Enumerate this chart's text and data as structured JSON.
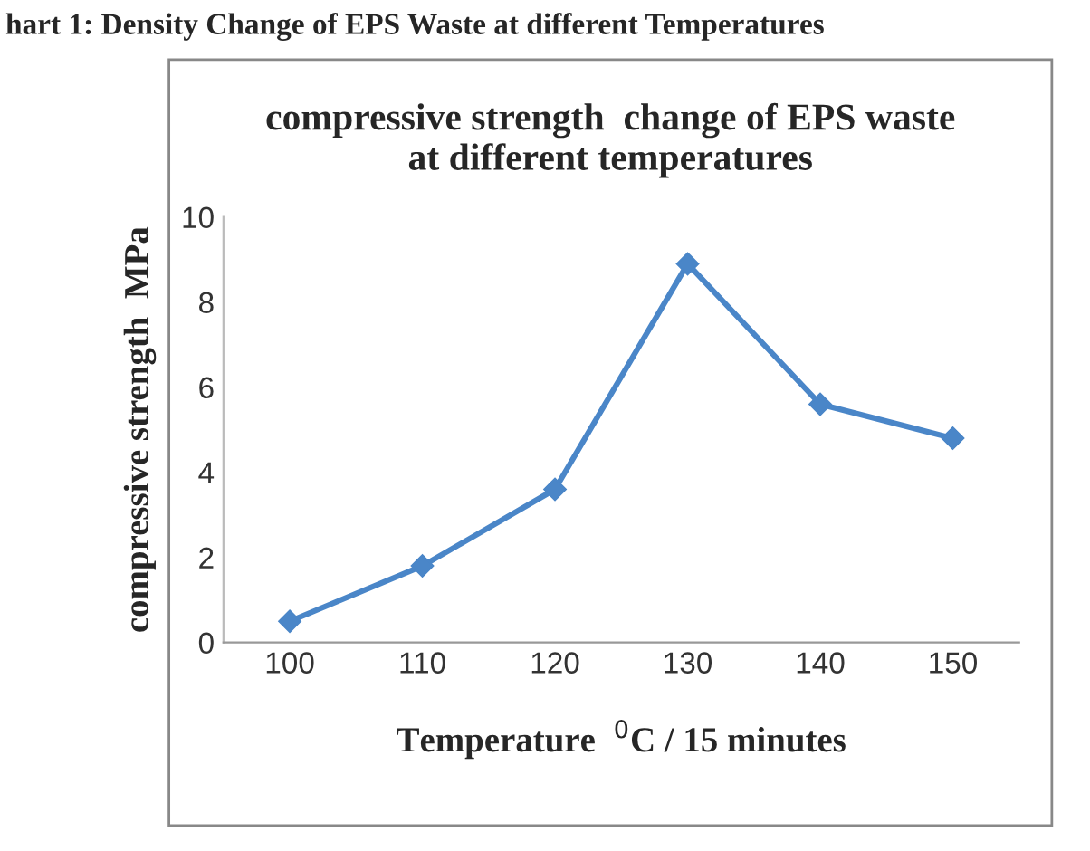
{
  "chart_data": {
    "type": "line",
    "title": "compressive strength  change of EPS waste\nat different temperatures",
    "annotations": [
      "hart 1: Density Change of EPS Waste at different Temperatures"
    ],
    "xlabel": "Temperature  $^{0}$C / 15 minutes",
    "ylabel": "compressive strength  MPa",
    "categories": [
      "100",
      "110",
      "120",
      "130",
      "140",
      "150"
    ],
    "series": [
      {
        "color": "#4a86c8",
        "values": [
          0.5,
          1.8,
          3.6,
          8.9,
          5.6,
          4.8
        ]
      }
    ],
    "ylim": [
      0,
      10
    ],
    "yticks": [
      0,
      2,
      4,
      6,
      8,
      10
    ],
    "grid": false,
    "legend": false,
    "marker": "diamond",
    "line_style": "solid"
  }
}
